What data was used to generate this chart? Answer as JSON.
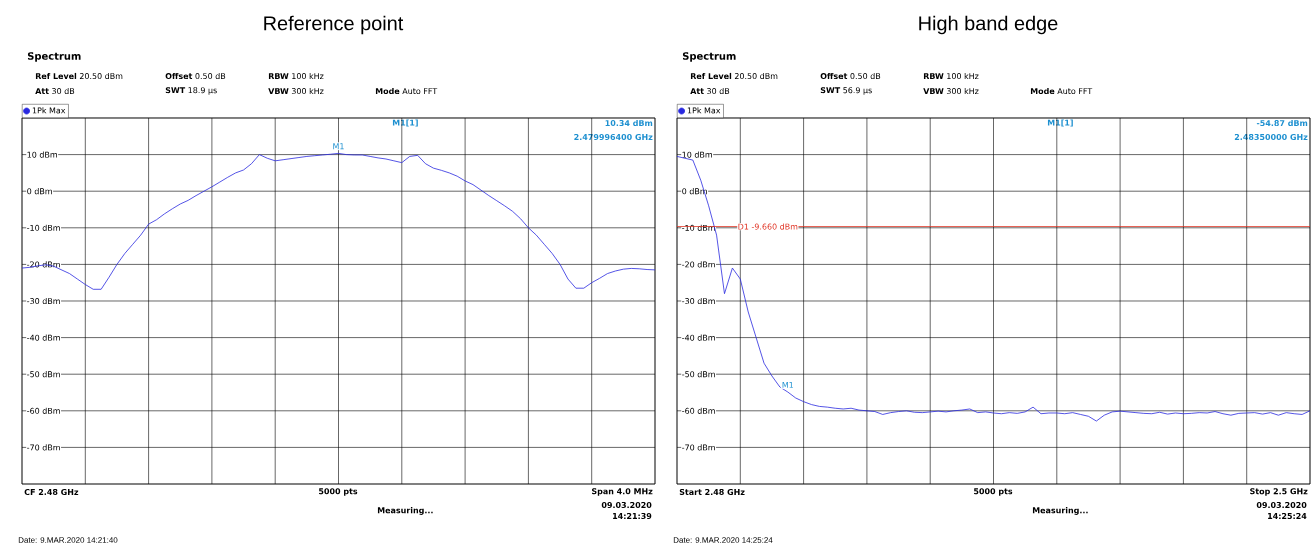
{
  "chart_data": [
    {
      "type": "line",
      "title": "Reference point",
      "categories": [
        null,
        null,
        null,
        null,
        null,
        null,
        null,
        null,
        null,
        null,
        null,
        null,
        null,
        null,
        null,
        null,
        null,
        null,
        null,
        null,
        null,
        null,
        null,
        null,
        null,
        null,
        null,
        null,
        null,
        null,
        null,
        null,
        null,
        null,
        null,
        null,
        null,
        null,
        null,
        null,
        null,
        null,
        null,
        null,
        null,
        null,
        null,
        null,
        null,
        null,
        null,
        null,
        null,
        null,
        null,
        null,
        null,
        null,
        null,
        null,
        null,
        null,
        null,
        null,
        null,
        null,
        null,
        null,
        null,
        null,
        null,
        null,
        null,
        null,
        null,
        null,
        null,
        null,
        null,
        null,
        null
      ],
      "series": [
        {
          "name": "1Pk Max",
          "color": "#2a2ae0",
          "values": [
            -21,
            -20.8,
            -20.4,
            -20.1,
            -20.5,
            -21.5,
            -22.5,
            -24,
            -25.5,
            -26.8,
            -26.8,
            -23.5,
            -20,
            -17,
            -14.5,
            -12,
            -9,
            -7.8,
            -6.2,
            -4.8,
            -3.5,
            -2.5,
            -1.2,
            0,
            1.2,
            2.5,
            3.8,
            5,
            5.8,
            7.5,
            10,
            9,
            8.3,
            8.6,
            8.9,
            9.2,
            9.5,
            9.7,
            9.9,
            10.1,
            10.34,
            10,
            9.9,
            9.9,
            9.5,
            9.1,
            8.8,
            8.3,
            7.8,
            9.5,
            9.8,
            7.5,
            6.3,
            5.7,
            5,
            4.1,
            2.8,
            1.8,
            0.3,
            -1.2,
            -2.6,
            -4,
            -5.5,
            -7.5,
            -10,
            -12,
            -14.5,
            -17,
            -20,
            -24,
            -26.5,
            -26.5,
            -25,
            -23.8,
            -22.5,
            -21.8,
            -21.3,
            -21.1,
            -21.2,
            -21.4,
            -21.5
          ]
        }
      ],
      "ylim": [
        -80,
        20
      ],
      "yticks": [
        {
          "value": -70,
          "label": "-70 dBm"
        },
        {
          "value": -60,
          "label": "-60 dBm"
        },
        {
          "value": -50,
          "label": "-50 dBm"
        },
        {
          "value": -40,
          "label": "-40 dBm"
        },
        {
          "value": -30,
          "label": "-30 dBm"
        },
        {
          "value": -20,
          "label": "-20 dBm"
        },
        {
          "value": -10,
          "label": "-10 dBm"
        },
        {
          "value": 0,
          "label": "0 dBm"
        },
        {
          "value": 10,
          "label": "10 dBm"
        }
      ],
      "grid": true,
      "legend": "top left",
      "annotations": [
        "Spectrum",
        "**Ref Level** 20.50 dBm",
        "**Offset** 0.50 dB",
        "**RBW** 100 kHz",
        "**Att** 30 dB",
        "**SWT** 18.9 µs",
        "**VBW** 300 kHz",
        "**Mode** Auto FFT",
        "M1[1]",
        "10.34 dBm",
        "2.479996400 GHz",
        {
          "text": "M1",
          "y": 10.34
        },
        "CF 2.48 GHz",
        "5000 pts",
        "Span 4.0 MHz",
        "Measuring...",
        "09.03.2020",
        "14:21:39",
        "Date: 9.MAR.2020  14:21:40"
      ]
    },
    {
      "type": "line",
      "title": "High band edge",
      "categories": [
        null,
        null,
        null,
        null,
        null,
        null,
        null,
        null,
        null,
        null,
        null,
        null,
        null,
        null,
        null,
        null,
        null,
        null,
        null,
        null,
        null,
        null,
        null,
        null,
        null,
        null,
        null,
        null,
        null,
        null,
        null,
        null,
        null,
        null,
        null,
        null,
        null,
        null,
        null,
        null,
        null,
        null,
        null,
        null,
        null,
        null,
        null,
        null,
        null,
        null,
        null,
        null,
        null,
        null,
        null,
        null,
        null,
        null,
        null,
        null,
        null,
        null,
        null,
        null,
        null,
        null,
        null,
        null,
        null,
        null,
        null,
        null,
        null,
        null,
        null,
        null,
        null,
        null,
        null,
        null,
        null
      ],
      "series": [
        {
          "name": "1Pk Max",
          "color": "#2a2ae0",
          "values": [
            9.5,
            9,
            8.5,
            3,
            -4,
            -12,
            -28,
            -21,
            -24,
            -33,
            -40,
            -47,
            -50.5,
            -53.5,
            -54.87,
            -56.5,
            -57.5,
            -58.3,
            -58.8,
            -59,
            -59.3,
            -59.5,
            -59.3,
            -59.8,
            -60,
            -60.2,
            -61,
            -60.5,
            -60.2,
            -60,
            -60.4,
            -60.5,
            -60.3,
            -60.1,
            -60.3,
            -60,
            -59.8,
            -59.5,
            -60.5,
            -60.3,
            -60.6,
            -60.8,
            -60.5,
            -60.7,
            -60.3,
            -59,
            -60.8,
            -60.6,
            -60.6,
            -60.8,
            -60.5,
            -61,
            -61.5,
            -62.8,
            -61.2,
            -60.3,
            -60.1,
            -60.3,
            -60.5,
            -60.7,
            -60.8,
            -60.4,
            -60.9,
            -60.6,
            -60.8,
            -60.7,
            -60.5,
            -60.6,
            -60.2,
            -60.8,
            -61.2,
            -60.7,
            -60.6,
            -60.5,
            -60.9,
            -60.5,
            -61.2,
            -60.5,
            -60.8,
            -61,
            -60
          ]
        }
      ],
      "ylim": [
        -80,
        20
      ],
      "yticks": [
        {
          "value": -70,
          "label": "-70 dBm"
        },
        {
          "value": -60,
          "label": "-60 dBm"
        },
        {
          "value": -50,
          "label": "-50 dBm"
        },
        {
          "value": -40,
          "label": "-40 dBm"
        },
        {
          "value": -30,
          "label": "-30 dBm"
        },
        {
          "value": -20,
          "label": "-20 dBm"
        },
        {
          "value": -10,
          "label": "-10 dBm"
        },
        {
          "value": 0,
          "label": "0 dBm"
        },
        {
          "value": 10,
          "label": "10 dBm"
        }
      ],
      "grid": true,
      "legend": "top left",
      "ref_lines": [
        {
          "axis": "y",
          "value": -9.66,
          "label": "D1  -9.660 dBm",
          "color": "#e03020"
        }
      ],
      "annotations": [
        "Spectrum",
        "**Ref Level** 20.50 dBm",
        "**Offset** 0.50 dB",
        "**RBW** 100 kHz",
        "**Att** 30 dB",
        "**SWT** 56.9 µs",
        "**VBW** 300 kHz",
        "**Mode** Auto FFT",
        "M1[1]",
        "-54.87 dBm",
        "2.48350000 GHz",
        {
          "text": "M1",
          "y": -54.87
        },
        "Start 2.48 GHz",
        "5000 pts",
        "Stop 2.5 GHz",
        "Measuring...",
        "09.03.2020",
        "14:25:24",
        "Date: 9.MAR.2020  14:25:24"
      ]
    }
  ]
}
